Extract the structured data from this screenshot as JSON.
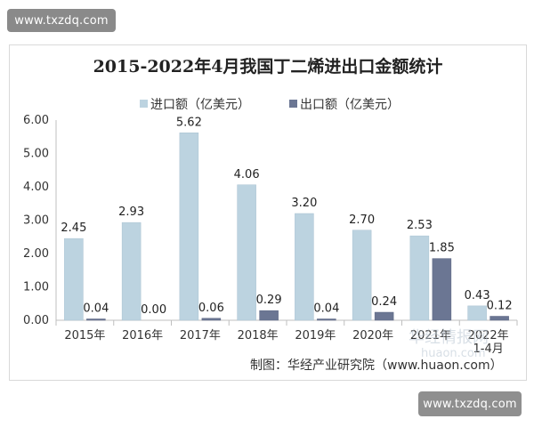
{
  "watermarks": {
    "top": "www.txzdq.com",
    "bottom": "www.txzdq.com",
    "faint": "华经情报网",
    "faint_url": "huaon.com"
  },
  "chart_data": {
    "type": "bar",
    "title": "2015-2022年4月我国丁二烯进出口金额统计",
    "categories": [
      "2015年",
      "2016年",
      "2017年",
      "2018年",
      "2019年",
      "2020年",
      "2021年",
      [
        "2022年",
        "1-4月"
      ]
    ],
    "series": [
      {
        "name": "进口额（亿美元）",
        "color": "#bcd3e0",
        "values": [
          2.45,
          2.93,
          5.62,
          4.06,
          3.2,
          2.7,
          2.53,
          0.43
        ],
        "labels": [
          "2.45",
          "2.93",
          "5.62",
          "4.06",
          "3.20",
          "2.70",
          "2.53",
          "0.43"
        ]
      },
      {
        "name": "出口额（亿美元）",
        "color": "#6b7693",
        "values": [
          0.04,
          0.0,
          0.06,
          0.29,
          0.04,
          0.24,
          1.85,
          0.12
        ],
        "labels": [
          "0.04",
          "0.00",
          "0.06",
          "0.29",
          "0.04",
          "0.24",
          "1.85",
          "0.12"
        ]
      }
    ],
    "ylim": [
      0,
      6
    ],
    "yticks": [
      "0.00",
      "1.00",
      "2.00",
      "3.00",
      "4.00",
      "5.00",
      "6.00"
    ],
    "ytick_values": [
      0,
      1,
      2,
      3,
      4,
      5,
      6
    ],
    "source": "制图：华经产业研究院（www.huaon.com）",
    "legend_position": "top",
    "grid": false
  }
}
